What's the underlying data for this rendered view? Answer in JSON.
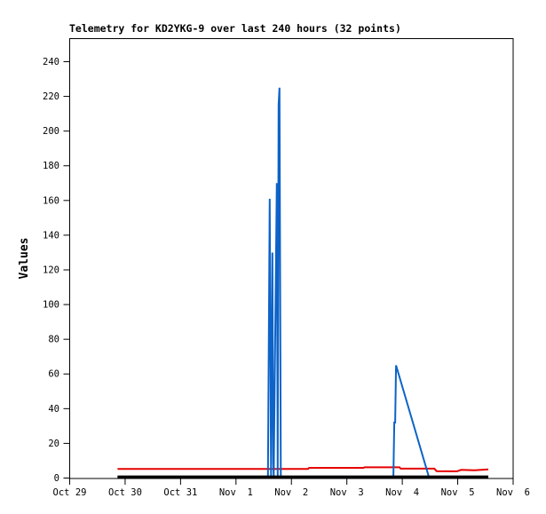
{
  "title": "Telemetry for KD2YKG-9 over last 240 hours (32 points)",
  "chart_data": {
    "type": "line",
    "title": "Telemetry for KD2YKG-9 over last 240 hours (32 points)",
    "xlabel": "",
    "ylabel": "Values",
    "x_unit": "days since Oct 29",
    "xlim": [
      0,
      8
    ],
    "ylim": [
      0,
      253
    ],
    "grid": false,
    "legend": "none",
    "background_color": "#ffffff",
    "axis_color": "#000000",
    "yticks": [
      0,
      20,
      40,
      60,
      80,
      100,
      120,
      140,
      160,
      180,
      200,
      220,
      240
    ],
    "xticks": {
      "positions": [
        0,
        1,
        2,
        3,
        4,
        5,
        6,
        7,
        8
      ],
      "labels": [
        "Oct 29",
        "Oct 30",
        "Oct 31",
        "Nov  1",
        "Nov  2",
        "Nov  3",
        "Nov  4",
        "Nov  5",
        "Nov  6"
      ]
    },
    "series": [
      {
        "name": "red-series",
        "color": "#e60000",
        "stroke_width": 2,
        "points": [
          [
            0.864,
            5.2
          ],
          [
            4.3,
            5.2
          ],
          [
            4.32,
            5.9
          ],
          [
            5.3,
            5.9
          ],
          [
            5.32,
            6.2
          ],
          [
            5.95,
            6.2
          ],
          [
            5.97,
            5.4
          ],
          [
            6.58,
            5.4
          ],
          [
            6.62,
            4.0
          ],
          [
            6.99,
            3.9
          ],
          [
            7.06,
            4.7
          ],
          [
            7.3,
            4.5
          ],
          [
            7.552,
            5.0
          ]
        ]
      },
      {
        "name": "blue-series",
        "color": "#0d63c8",
        "stroke_width": 2,
        "points": [
          [
            0.864,
            0.6
          ],
          [
            3.576,
            0.6
          ],
          [
            3.608,
            161
          ],
          [
            3.632,
            0.6
          ],
          [
            3.656,
            130
          ],
          [
            3.672,
            9
          ],
          [
            3.68,
            0.6
          ],
          [
            3.736,
            170
          ],
          [
            3.752,
            0.6
          ],
          [
            3.768,
            215
          ],
          [
            3.784,
            225
          ],
          [
            3.808,
            0.6
          ],
          [
            5.84,
            0.6
          ],
          [
            5.856,
            32
          ],
          [
            5.872,
            32
          ],
          [
            5.888,
            65
          ],
          [
            6.48,
            0.6
          ],
          [
            7.552,
            0.6
          ]
        ]
      },
      {
        "name": "black-series",
        "color": "#000000",
        "stroke_width": 3,
        "points": [
          [
            0.864,
            0.7
          ],
          [
            7.552,
            0.7
          ]
        ]
      }
    ]
  }
}
